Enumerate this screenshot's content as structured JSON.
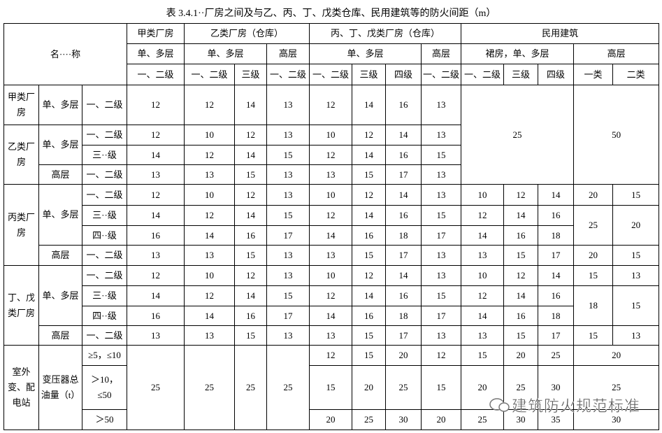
{
  "title": "表 3.4.1··厂房之间及与乙、丙、丁、戊类仓库、民用建筑等的防火间距（m）",
  "table": {
    "header": [
      [
        "名····称",
        "甲类厂房",
        "乙类厂房（仓库）",
        "丙、丁、戊类厂房（仓库）",
        "民用建筑"
      ],
      [
        "单、多层",
        "单、多层",
        "高层",
        "单、多层",
        "高层",
        "裙房，单、多层",
        "高层"
      ],
      [
        "一、二级",
        "一、二级",
        "三级",
        "一、二级",
        "一、二级",
        "三级",
        "四级",
        "一、二级",
        "一、二级",
        "三级",
        "四级",
        "一类",
        "二类"
      ]
    ],
    "rows": [
      [
        "甲类厂房",
        "单、多层",
        "一、二级",
        12,
        12,
        14,
        13,
        12,
        14,
        16,
        13,
        25,
        50
      ],
      [
        "乙类厂房",
        "单、多层",
        "一、二级",
        12,
        10,
        12,
        13,
        10,
        12,
        14,
        13
      ],
      [
        "三··级",
        14,
        12,
        14,
        15,
        12,
        14,
        16,
        15
      ],
      [
        "高层",
        "一、二级",
        13,
        13,
        15,
        13,
        13,
        15,
        17,
        13
      ],
      [
        "丙类厂房",
        "单、多层",
        "一、二级",
        12,
        10,
        12,
        13,
        10,
        12,
        14,
        13,
        10,
        12,
        14,
        20,
        15
      ],
      [
        "三··级",
        14,
        12,
        14,
        15,
        12,
        14,
        16,
        15,
        12,
        14,
        16,
        25,
        20
      ],
      [
        "四··级",
        16,
        14,
        16,
        17,
        14,
        16,
        18,
        17,
        14,
        16,
        18
      ],
      [
        "高层",
        "一、二级",
        13,
        13,
        15,
        13,
        13,
        15,
        17,
        13,
        13,
        15,
        17,
        20,
        15
      ],
      [
        "丁、戊类厂房",
        "单、多层",
        "一、二级",
        12,
        10,
        12,
        13,
        10,
        12,
        14,
        13,
        10,
        12,
        14,
        15,
        13
      ],
      [
        "三··级",
        14,
        12,
        14,
        15,
        12,
        14,
        16,
        15,
        12,
        14,
        16,
        18,
        15
      ],
      [
        "四··级",
        16,
        14,
        16,
        17,
        14,
        16,
        18,
        17,
        14,
        16,
        18
      ],
      [
        "高层",
        "一、二级",
        13,
        13,
        15,
        13,
        13,
        15,
        17,
        13,
        13,
        15,
        17,
        15,
        13
      ],
      [
        "室外变、配电站",
        "变压器总油量（t）",
        "≥5，≤10",
        25,
        25,
        25,
        25,
        12,
        15,
        20,
        12,
        15,
        20,
        25,
        20
      ],
      [
        "＞10，≤50",
        15,
        20,
        25,
        15,
        20,
        25,
        30,
        25
      ],
      [
        "＞50",
        20,
        25,
        30,
        20,
        25,
        30,
        35,
        30
      ]
    ]
  },
  "watermark": "建筑防火规范标准"
}
